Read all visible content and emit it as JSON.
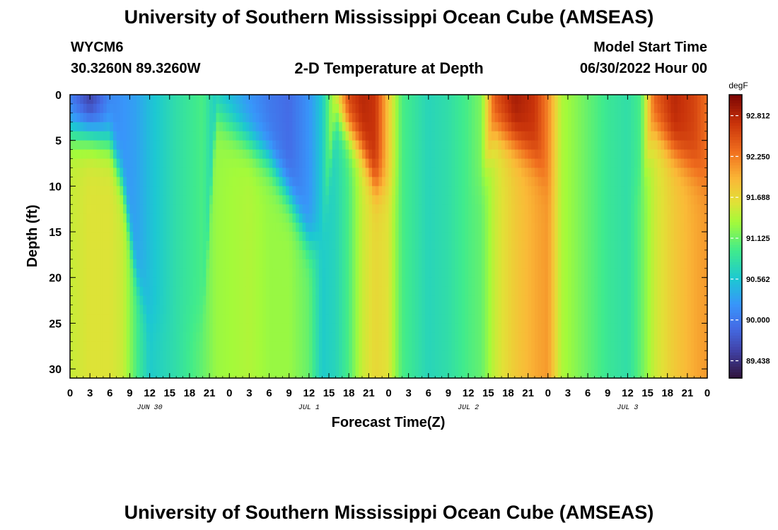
{
  "header": {
    "title": "University of Southern Mississippi Ocean Cube (AMSEAS)",
    "station": "WYCM6",
    "coords": "30.3260N  89.3260W",
    "model_start_label": "Model Start Time",
    "model_start_value": "06/30/2022 Hour 00"
  },
  "footer": {
    "title": "University of Southern Mississippi Ocean Cube (AMSEAS)"
  },
  "chart_data": {
    "type": "heatmap",
    "title": "2-D Temperature at Depth",
    "xlabel": "Forecast Time(Z)",
    "ylabel": "Depth (ft)",
    "x_ticks": [
      "0",
      "3",
      "6",
      "9",
      "12",
      "15",
      "18",
      "21",
      "0",
      "3",
      "6",
      "9",
      "12",
      "15",
      "18",
      "21",
      "0",
      "3",
      "6",
      "9",
      "12",
      "15",
      "18",
      "21",
      "0",
      "3",
      "6",
      "9",
      "12",
      "15",
      "18",
      "21",
      "0"
    ],
    "date_labels": [
      {
        "label": "JUN 30",
        "hour": 12
      },
      {
        "label": "JUL 1",
        "hour": 36
      },
      {
        "label": "JUL 2",
        "hour": 60
      },
      {
        "label": "JUL 3",
        "hour": 84
      }
    ],
    "x_range_hours": [
      0,
      96
    ],
    "y_ticks": [
      0,
      5,
      10,
      15,
      20,
      25,
      30
    ],
    "y_range_ft": [
      0,
      31
    ],
    "colorbar": {
      "unit": "degF",
      "ticks": [
        "92.812",
        "92.250",
        "91.688",
        "91.125",
        "90.562",
        "90.000",
        "89.438"
      ],
      "range": [
        89.2,
        93.1
      ]
    },
    "series_keyframes": [
      {
        "hour": 0,
        "surface": 90.0,
        "deep": 91.5,
        "transition_ft": 4
      },
      {
        "hour": 3,
        "surface": 89.5,
        "deep": 91.6,
        "transition_ft": 4
      },
      {
        "hour": 6,
        "surface": 90.1,
        "deep": 91.6,
        "transition_ft": 5
      },
      {
        "hour": 8,
        "surface": 90.2,
        "deep": 91.5,
        "transition_ft": 10
      },
      {
        "hour": 10,
        "surface": 90.3,
        "deep": 91.0,
        "transition_ft": 20
      },
      {
        "hour": 12,
        "surface": 90.5,
        "deep": 90.6,
        "transition_ft": 25
      },
      {
        "hour": 16,
        "surface": 90.8,
        "deep": 90.8,
        "transition_ft": 25
      },
      {
        "hour": 20,
        "surface": 91.0,
        "deep": 91.1,
        "transition_ft": 25
      },
      {
        "hour": 22,
        "surface": 90.6,
        "deep": 91.3,
        "transition_ft": 2
      },
      {
        "hour": 27,
        "surface": 90.2,
        "deep": 91.4,
        "transition_ft": 5
      },
      {
        "hour": 30,
        "surface": 90.0,
        "deep": 91.3,
        "transition_ft": 7
      },
      {
        "hour": 33,
        "surface": 89.9,
        "deep": 91.3,
        "transition_ft": 11
      },
      {
        "hour": 36,
        "surface": 90.2,
        "deep": 91.1,
        "transition_ft": 16
      },
      {
        "hour": 38,
        "surface": 90.6,
        "deep": 90.6,
        "transition_ft": 16
      },
      {
        "hour": 40,
        "surface": 91.6,
        "deep": 90.7,
        "transition_ft": 2
      },
      {
        "hour": 42,
        "surface": 92.6,
        "deep": 91.0,
        "transition_ft": 4
      },
      {
        "hour": 44,
        "surface": 92.8,
        "deep": 91.5,
        "transition_ft": 6
      },
      {
        "hour": 46,
        "surface": 92.7,
        "deep": 91.7,
        "transition_ft": 10
      },
      {
        "hour": 48,
        "surface": 91.8,
        "deep": 91.6,
        "transition_ft": 10
      },
      {
        "hour": 50,
        "surface": 91.0,
        "deep": 91.0,
        "transition_ft": 10
      },
      {
        "hour": 54,
        "surface": 90.7,
        "deep": 90.7,
        "transition_ft": 10
      },
      {
        "hour": 57,
        "surface": 90.8,
        "deep": 90.8,
        "transition_ft": 10
      },
      {
        "hour": 60,
        "surface": 91.0,
        "deep": 91.0,
        "transition_ft": 10
      },
      {
        "hour": 62,
        "surface": 91.2,
        "deep": 91.1,
        "transition_ft": 10
      },
      {
        "hour": 64,
        "surface": 92.5,
        "deep": 91.5,
        "transition_ft": 4
      },
      {
        "hour": 67,
        "surface": 92.9,
        "deep": 91.8,
        "transition_ft": 5
      },
      {
        "hour": 70,
        "surface": 92.7,
        "deep": 92.0,
        "transition_ft": 7
      },
      {
        "hour": 72,
        "surface": 92.2,
        "deep": 92.1,
        "transition_ft": 10
      },
      {
        "hour": 74,
        "surface": 91.4,
        "deep": 91.4,
        "transition_ft": 10
      },
      {
        "hour": 78,
        "surface": 91.1,
        "deep": 91.1,
        "transition_ft": 10
      },
      {
        "hour": 81,
        "surface": 90.9,
        "deep": 90.9,
        "transition_ft": 10
      },
      {
        "hour": 84,
        "surface": 90.8,
        "deep": 90.8,
        "transition_ft": 10
      },
      {
        "hour": 86,
        "surface": 91.0,
        "deep": 91.1,
        "transition_ft": 10
      },
      {
        "hour": 88,
        "surface": 92.4,
        "deep": 91.5,
        "transition_ft": 4
      },
      {
        "hour": 91,
        "surface": 92.8,
        "deep": 91.8,
        "transition_ft": 6
      },
      {
        "hour": 94,
        "surface": 92.6,
        "deep": 92.0,
        "transition_ft": 8
      },
      {
        "hour": 96,
        "surface": 92.3,
        "deep": 92.1,
        "transition_ft": 10
      }
    ]
  }
}
